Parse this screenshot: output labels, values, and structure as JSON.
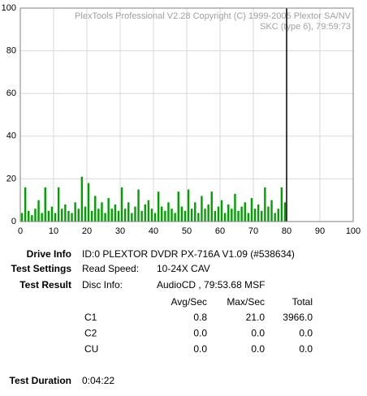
{
  "chart_data": {
    "type": "bar",
    "watermark": [
      "PlexTools Professional V2.28 Copyright (C) 1999-2005 Plextor SA/NV",
      "SKC (type 6), 79:59:73"
    ],
    "x": [
      0.5,
      1.5,
      2.5,
      3.5,
      4.5,
      5.5,
      6.5,
      7.5,
      8.5,
      9.5,
      10.5,
      11.5,
      12.5,
      13.5,
      14.5,
      15.5,
      16.5,
      17.5,
      18.5,
      19.5,
      20.5,
      21.5,
      22.5,
      23.5,
      24.5,
      25.5,
      26.5,
      27.5,
      28.5,
      29.5,
      30.5,
      31.5,
      32.5,
      33.5,
      34.5,
      35.5,
      36.5,
      37.5,
      38.5,
      39.5,
      40.5,
      41.5,
      42.5,
      43.5,
      44.5,
      45.5,
      46.5,
      47.5,
      48.5,
      49.5,
      50.5,
      51.5,
      52.5,
      53.5,
      54.5,
      55.5,
      56.5,
      57.5,
      58.5,
      59.5,
      60.5,
      61.5,
      62.5,
      63.5,
      64.5,
      65.5,
      66.5,
      67.5,
      68.5,
      69.5,
      70.5,
      71.5,
      72.5,
      73.5,
      74.5,
      75.5,
      76.5,
      77.5,
      78.5,
      79.5
    ],
    "values": [
      4,
      16,
      5,
      3,
      6,
      10,
      4,
      16,
      5,
      7,
      4,
      16,
      6,
      8,
      5,
      4,
      9,
      6,
      21,
      7,
      18,
      5,
      12,
      6,
      9,
      4,
      11,
      6,
      8,
      5,
      16,
      6,
      9,
      4,
      7,
      15,
      5,
      8,
      10,
      6,
      4,
      14,
      7,
      5,
      9,
      6,
      4,
      14,
      7,
      5,
      15,
      6,
      9,
      4,
      12,
      6,
      8,
      14,
      5,
      7,
      10,
      4,
      8,
      6,
      13,
      5,
      7,
      9,
      4,
      11,
      6,
      8,
      5,
      16,
      7,
      10,
      4,
      6,
      16,
      9
    ],
    "color": "#00a000",
    "marker_x": 80,
    "xlim": [
      0,
      100
    ],
    "xticks": [
      0,
      10,
      20,
      30,
      40,
      50,
      60,
      70,
      80,
      90,
      100
    ],
    "ylim": [
      0,
      100
    ],
    "yticks": [
      0,
      20,
      40,
      60,
      80,
      100
    ],
    "grid": true
  },
  "info": {
    "drive": {
      "label": "Drive Info",
      "value": "ID:0 PLEXTOR DVDR PX-716A V1.09 (#538634)"
    },
    "settings": {
      "label": "Test Settings",
      "key": "Read Speed:",
      "value": "10-24X CAV"
    },
    "result": {
      "label": "Test Result",
      "key": "Disc Info:",
      "value": "AudioCD , 79:53.68 MSF"
    },
    "table": {
      "header": [
        "Avg/Sec",
        "Max/Sec",
        "Total"
      ],
      "rows": [
        [
          "C1",
          "0.8",
          "21.0",
          "3966.0"
        ],
        [
          "C2",
          "0.0",
          "0.0",
          "0.0"
        ],
        [
          "CU",
          "0.0",
          "0.0",
          "0.0"
        ]
      ]
    },
    "duration": {
      "label": "Test Duration",
      "value": "0:04:22"
    }
  }
}
